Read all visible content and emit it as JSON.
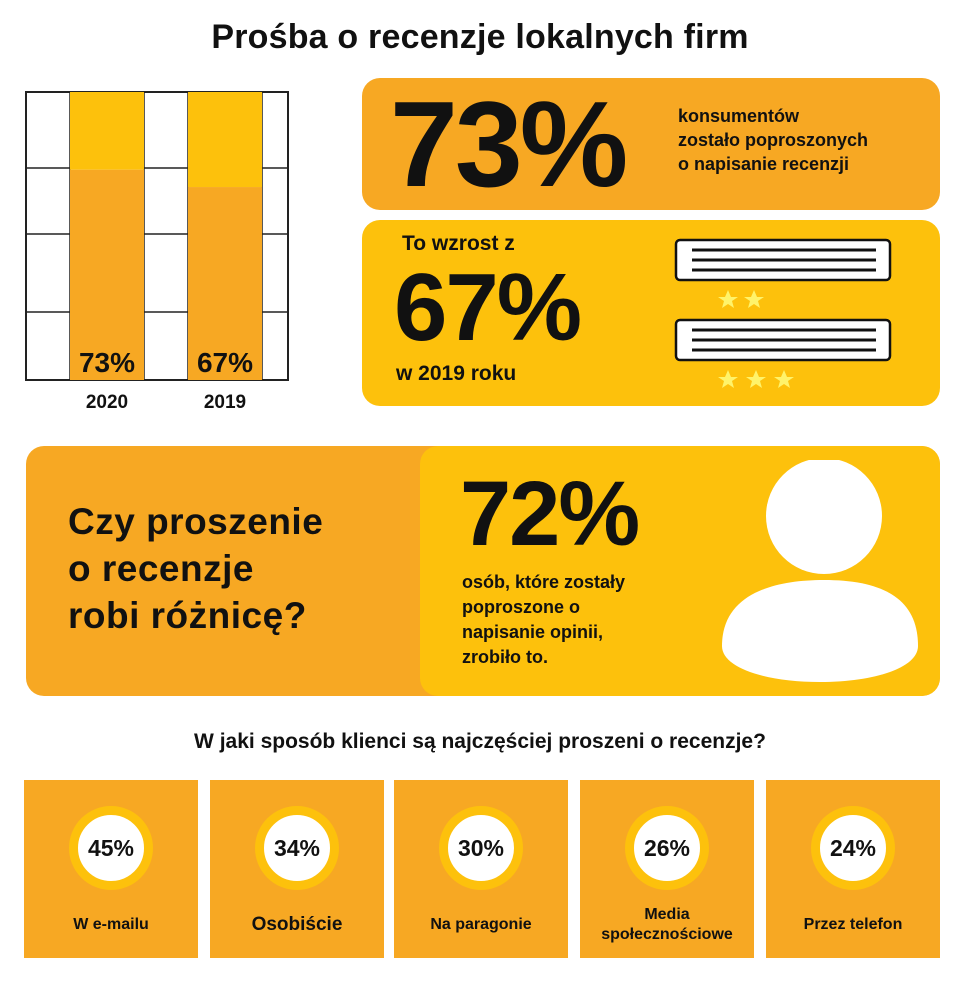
{
  "title": "Prośba o recenzje lokalnych firm",
  "chart_data": {
    "type": "bar",
    "categories": [
      "2020",
      "2019"
    ],
    "values": [
      73,
      67
    ],
    "value_labels": [
      "73%",
      "67%"
    ],
    "ylim": [
      0,
      100
    ],
    "grid": true,
    "colors": {
      "bar": "#f7a823",
      "remainder": "#fdc10c",
      "grid": "#222222"
    }
  },
  "stat_73": {
    "value": "73%",
    "description_lines": [
      "konsumentów",
      "zostało poproszonych",
      "o napisanie recenzji"
    ]
  },
  "stat_67": {
    "prefix": "To wzrost z",
    "value": "67%",
    "suffix": "w 2019 roku"
  },
  "question_block": {
    "question_lines": [
      "Czy proszenie",
      "o recenzje",
      "robi różnicę?"
    ],
    "value": "72%",
    "description_lines": [
      "osób, które zostały",
      "poproszone o",
      "napisanie opinii,",
      "zrobiło to."
    ]
  },
  "ways": {
    "title": "W jaki sposób klienci są najczęściej proszeni o recenzje?",
    "items": [
      {
        "value": "45%",
        "label": "W e-mailu"
      },
      {
        "value": "34%",
        "label": "Osobiście"
      },
      {
        "value": "30%",
        "label": "Na paragonie"
      },
      {
        "value": "26%",
        "label": "Media społecznościowe"
      },
      {
        "value": "24%",
        "label": "Przez telefon"
      }
    ]
  },
  "colors": {
    "orange": "#f7a823",
    "yellow": "#fdc10c",
    "text": "#111111",
    "star": "#fff36a"
  },
  "icons": [
    "review-card-icon",
    "star-icon",
    "person-icon"
  ]
}
